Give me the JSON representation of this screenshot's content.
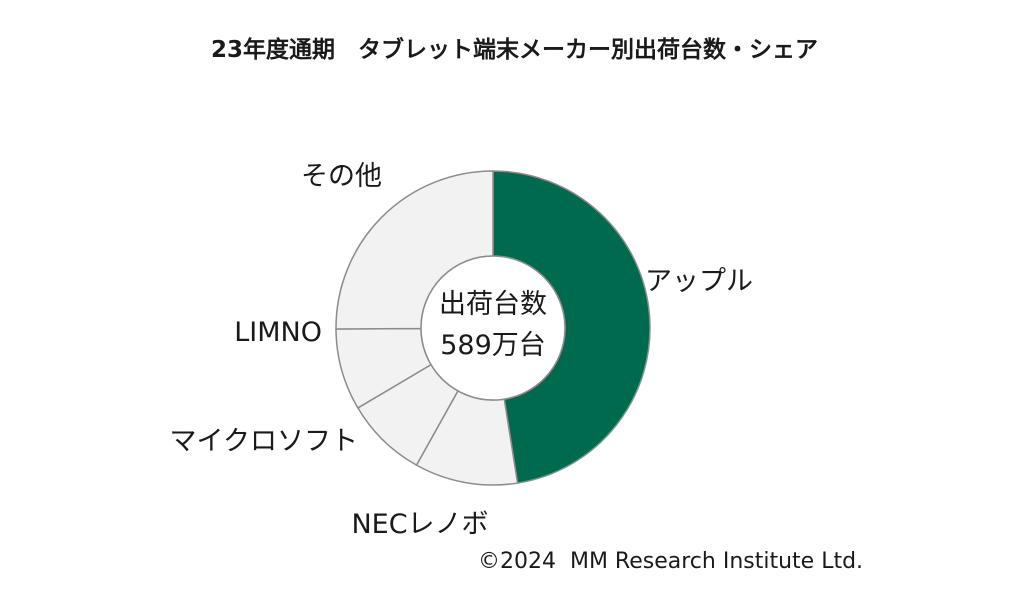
{
  "chart_data": {
    "type": "pie",
    "title": "23年度通期　タブレット端末メーカー別出荷台数・シェア",
    "center_label": [
      "出荷台数",
      "589万台"
    ],
    "categories": [
      "アップル",
      "NECレノボ",
      "マイクロソフト",
      "LIMNO",
      "その他"
    ],
    "values": [
      47.5,
      10.6,
      8.4,
      8.4,
      25.1
    ],
    "unit": "%",
    "colors": [
      "#006a4e",
      "#f2f2f2",
      "#f2f2f2",
      "#f2f2f2",
      "#f2f2f2"
    ],
    "stroke_color": "#8c8c8c",
    "legend": "none"
  },
  "credit": "©2024  MM Research Institute Ltd."
}
